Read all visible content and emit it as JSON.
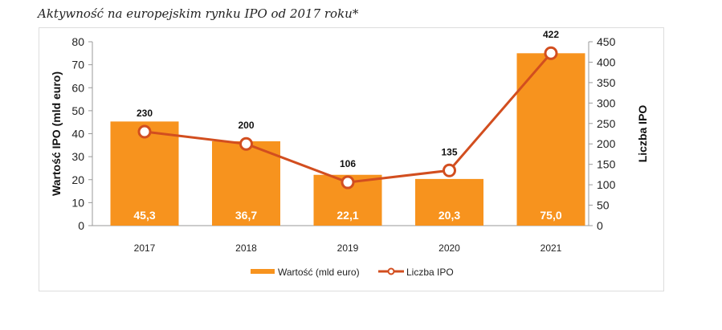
{
  "title": "Aktywność na europejskim rynku IPO od 2017 roku*",
  "chart_data": {
    "type": "bar+line",
    "categories": [
      "2017",
      "2018",
      "2019",
      "2020",
      "2021"
    ],
    "series": [
      {
        "name": "Wartość (mld euro)",
        "type": "bar",
        "axis": "left",
        "values": [
          45.3,
          36.7,
          22.1,
          20.3,
          75.0
        ],
        "labels": [
          "45,3",
          "36,7",
          "22,1",
          "20,3",
          "75,0"
        ],
        "color": "#F7931E"
      },
      {
        "name": "Liczba IPO",
        "type": "line",
        "axis": "right",
        "values": [
          230,
          200,
          106,
          135,
          422
        ],
        "labels": [
          "230",
          "200",
          "106",
          "135",
          "422"
        ],
        "color": "#D24E1F"
      }
    ],
    "ylabel": "Wartość IPO (mld euro)",
    "y2label": "Liczba IPO",
    "ylim": [
      0,
      80
    ],
    "yticks": [
      0,
      10,
      20,
      30,
      40,
      50,
      60,
      70,
      80
    ],
    "y2lim": [
      0,
      450
    ],
    "y2ticks": [
      0,
      50,
      100,
      150,
      200,
      250,
      300,
      350,
      400,
      450
    ],
    "grid": false,
    "legend": "bottom"
  }
}
